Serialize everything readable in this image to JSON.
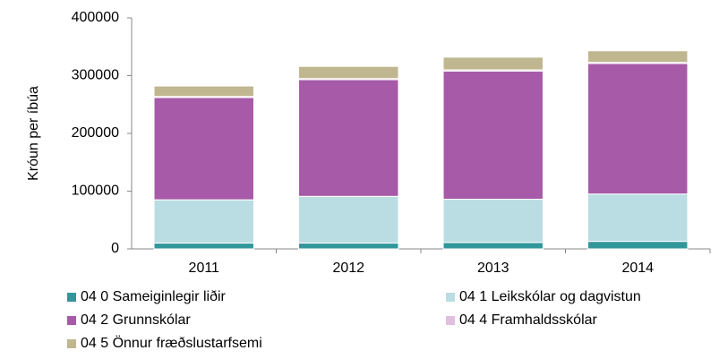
{
  "chart_data": {
    "type": "stacked_bar",
    "y_label": "Króun per íbúa",
    "categories": [
      "2011",
      "2012",
      "2013",
      "2014"
    ],
    "series": [
      {
        "name": "04 0 Sameiginlegir liðir",
        "color": "#31979b",
        "values": [
          10000,
          10000,
          11000,
          13000
        ]
      },
      {
        "name": "04 1 Leikskólar og dagvistun",
        "color": "#b9dde3",
        "values": [
          75000,
          81000,
          75000,
          82000
        ]
      },
      {
        "name": "04 2 Grunnskólar",
        "color": "#a65aa8",
        "values": [
          177000,
          202000,
          222000,
          226000
        ]
      },
      {
        "name": "04 4 Framhaldsskólar",
        "color": "#e2bfe0",
        "values": [
          2000,
          2000,
          2000,
          2000
        ]
      },
      {
        "name": "04 5 Önnur fræðslustarfsemi",
        "color": "#c0b68f",
        "values": [
          18000,
          21000,
          22000,
          20000
        ]
      }
    ],
    "ylim": [
      0,
      400000
    ],
    "yticks": [
      0,
      100000,
      200000,
      300000,
      400000
    ]
  }
}
